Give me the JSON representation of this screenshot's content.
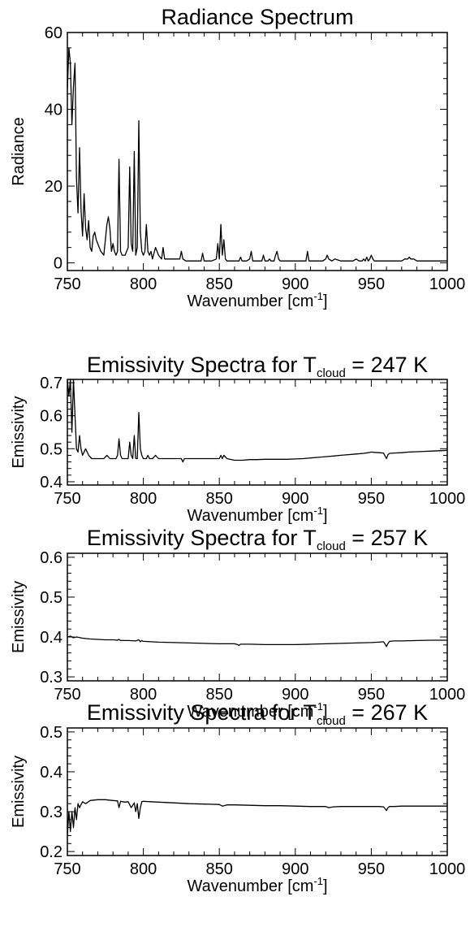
{
  "chart_data": [
    {
      "type": "line",
      "title": "Radiance Spectrum",
      "xlabel": "Wavenumber [cm",
      "xlabel_sup": "-1",
      "xlabel_tail": "]",
      "ylabel": "Radiance",
      "xlim": [
        750,
        1000
      ],
      "ylim": [
        -2,
        60
      ],
      "xticks": [
        750,
        800,
        850,
        900,
        950,
        1000
      ],
      "yticks": [
        0,
        20,
        40,
        60
      ],
      "series": [
        {
          "x": [
            750,
            751,
            752,
            753,
            754,
            755,
            756,
            757,
            758,
            759,
            760,
            761,
            762,
            763,
            764,
            765,
            766,
            767,
            768,
            769,
            770,
            772,
            774,
            776,
            777,
            778,
            779,
            780,
            781,
            782,
            783,
            784,
            785,
            786,
            787,
            788,
            789,
            790,
            791,
            792,
            793,
            794,
            795,
            796,
            797,
            798,
            799,
            800,
            801,
            802,
            803,
            804,
            805,
            806,
            808,
            810,
            812,
            813,
            814,
            816,
            818,
            820,
            822,
            824,
            825,
            826,
            828,
            830,
            835,
            838,
            839,
            840,
            845,
            848,
            849,
            850,
            851,
            852,
            853,
            854,
            855,
            856,
            860,
            863,
            864,
            865,
            868,
            870,
            871,
            872,
            875,
            878,
            879,
            880,
            882,
            883,
            884,
            886,
            887,
            888,
            889,
            890,
            895,
            900,
            905,
            907,
            908,
            909,
            912,
            915,
            918,
            920,
            921,
            922,
            924,
            926,
            930,
            935,
            938,
            940,
            942,
            944,
            945,
            946,
            947,
            948,
            949,
            950,
            951,
            952,
            953,
            955,
            958,
            960,
            962,
            965,
            968,
            970,
            972,
            974,
            975,
            976,
            978,
            980,
            982,
            984,
            986,
            988,
            990,
            992,
            994,
            996,
            998,
            1000
          ],
          "y": [
            45,
            56,
            52,
            36,
            46,
            52,
            22,
            13,
            30,
            14,
            7,
            18,
            9,
            6,
            11,
            4,
            3,
            7,
            8,
            6,
            5,
            3,
            2,
            10,
            12,
            9,
            3,
            5,
            3,
            2,
            3,
            27,
            3,
            2,
            2,
            2,
            3,
            4,
            25,
            5,
            3,
            29,
            2,
            4,
            37,
            8,
            3,
            2,
            3,
            10,
            3,
            2,
            3,
            1,
            4,
            2,
            1,
            4,
            1,
            1,
            1,
            1,
            1,
            1,
            3,
            1,
            0.5,
            0.5,
            0.5,
            0.5,
            2.5,
            0.5,
            0.5,
            1,
            5,
            1,
            10,
            2,
            6,
            1,
            0.5,
            0.5,
            0.5,
            0.5,
            1.5,
            0.5,
            0.5,
            1,
            3,
            0.5,
            0.5,
            0.5,
            2,
            0.5,
            0.5,
            1,
            0.5,
            0.5,
            2,
            3,
            1,
            0.5,
            0.5,
            0.5,
            0.5,
            0.5,
            3,
            0.5,
            0.5,
            0.5,
            0.5,
            1,
            2,
            1,
            0.5,
            1,
            0.5,
            0.5,
            0.5,
            1,
            0.5,
            0.5,
            1,
            0.5,
            1.5,
            0.5,
            1,
            2,
            1,
            0.5,
            0.5,
            0.5,
            0.5,
            0.5,
            0.5,
            0.5,
            0.5,
            0.5,
            1,
            1,
            1.5,
            1,
            1,
            0.5,
            0.5,
            0.5,
            0.5,
            0.5,
            0.5,
            0.5,
            0.5,
            0.5,
            0.5,
            0.5
          ]
        }
      ]
    },
    {
      "type": "line",
      "title": "Emissivity Spectra for T",
      "title_sub": "cloud",
      "title_tail": " = 247 K",
      "xlabel": "Wavenumber [cm",
      "xlabel_sup": "-1",
      "xlabel_tail": "]",
      "ylabel": "Emissivity",
      "xlim": [
        750,
        1000
      ],
      "ylim": [
        0.39,
        0.71
      ],
      "xticks": [
        750,
        800,
        850,
        900,
        950,
        1000
      ],
      "yticks": [
        0.4,
        0.5,
        0.6,
        0.7
      ],
      "series": [
        {
          "x": [
            750,
            751,
            752,
            753,
            754,
            755,
            756,
            757,
            758,
            759,
            760,
            762,
            764,
            766,
            768,
            770,
            772,
            774,
            776,
            778,
            780,
            782,
            783,
            784,
            785,
            786,
            788,
            790,
            791,
            792,
            793,
            794,
            795,
            796,
            797,
            798,
            799,
            800,
            802,
            803,
            804,
            806,
            808,
            810,
            812,
            815,
            820,
            825,
            826,
            827,
            830,
            835,
            840,
            845,
            848,
            850,
            851,
            852,
            853,
            855,
            860,
            865,
            870,
            875,
            880,
            885,
            890,
            895,
            900,
            905,
            910,
            915,
            920,
            925,
            930,
            935,
            940,
            945,
            948,
            950,
            952,
            955,
            958,
            960,
            961,
            962,
            965,
            970,
            975,
            980,
            985,
            990,
            995,
            1000
          ],
          "y": [
            0.71,
            0.66,
            0.71,
            0.55,
            0.71,
            0.6,
            0.5,
            0.49,
            0.54,
            0.5,
            0.48,
            0.5,
            0.48,
            0.47,
            0.47,
            0.47,
            0.47,
            0.47,
            0.48,
            0.47,
            0.47,
            0.47,
            0.48,
            0.53,
            0.48,
            0.47,
            0.47,
            0.47,
            0.52,
            0.48,
            0.47,
            0.54,
            0.47,
            0.47,
            0.61,
            0.5,
            0.48,
            0.47,
            0.47,
            0.48,
            0.47,
            0.47,
            0.48,
            0.47,
            0.47,
            0.47,
            0.47,
            0.47,
            0.46,
            0.47,
            0.47,
            0.47,
            0.47,
            0.47,
            0.47,
            0.47,
            0.48,
            0.47,
            0.48,
            0.47,
            0.465,
            0.465,
            0.467,
            0.467,
            0.468,
            0.468,
            0.468,
            0.468,
            0.469,
            0.47,
            0.472,
            0.474,
            0.476,
            0.478,
            0.48,
            0.482,
            0.484,
            0.486,
            0.488,
            0.49,
            0.489,
            0.488,
            0.487,
            0.47,
            0.482,
            0.486,
            0.487,
            0.488,
            0.49,
            0.491,
            0.492,
            0.493,
            0.494,
            0.495
          ]
        }
      ]
    },
    {
      "type": "line",
      "title": "Emissivity Spectra for T",
      "title_sub": "cloud",
      "title_tail": " = 257 K",
      "xlabel": "Wavenumber [cm",
      "xlabel_sup": "-1",
      "xlabel_tail": "]",
      "ylabel": "Emissivity",
      "xlim": [
        750,
        1000
      ],
      "ylim": [
        0.29,
        0.61
      ],
      "xticks": [
        750,
        800,
        850,
        900,
        950,
        1000
      ],
      "yticks": [
        0.3,
        0.4,
        0.5,
        0.6
      ],
      "series": [
        {
          "x": [
            750,
            752,
            754,
            756,
            760,
            765,
            770,
            775,
            780,
            783,
            784,
            785,
            790,
            795,
            797,
            798,
            799,
            800,
            805,
            810,
            820,
            830,
            840,
            850,
            860,
            862,
            863,
            864,
            866,
            870,
            880,
            890,
            900,
            910,
            920,
            930,
            940,
            950,
            955,
            958,
            959,
            960,
            961,
            962,
            965,
            970,
            980,
            990,
            1000
          ],
          "y": [
            0.4,
            0.402,
            0.398,
            0.4,
            0.397,
            0.395,
            0.394,
            0.393,
            0.393,
            0.392,
            0.394,
            0.391,
            0.391,
            0.39,
            0.393,
            0.388,
            0.391,
            0.389,
            0.388,
            0.387,
            0.386,
            0.385,
            0.384,
            0.383,
            0.383,
            0.381,
            0.379,
            0.382,
            0.382,
            0.382,
            0.381,
            0.381,
            0.381,
            0.382,
            0.383,
            0.384,
            0.385,
            0.386,
            0.387,
            0.388,
            0.383,
            0.376,
            0.384,
            0.389,
            0.39,
            0.39,
            0.391,
            0.392,
            0.392
          ]
        }
      ]
    },
    {
      "type": "line",
      "title": "Emissivity Spectra for T",
      "title_sub": "cloud",
      "title_tail": " = 267 K",
      "xlabel": "Wavenumber [cm",
      "xlabel_sup": "-1",
      "xlabel_tail": "]",
      "ylabel": "Emissivity",
      "xlim": [
        750,
        1000
      ],
      "ylim": [
        0.19,
        0.51
      ],
      "xticks": [
        750,
        800,
        850,
        900,
        950,
        1000
      ],
      "yticks": [
        0.2,
        0.3,
        0.4,
        0.5
      ],
      "series": [
        {
          "x": [
            750,
            751,
            752,
            753,
            754,
            755,
            756,
            757,
            758,
            760,
            762,
            765,
            770,
            775,
            780,
            783,
            784,
            785,
            788,
            790,
            792,
            794,
            795,
            796,
            797,
            798,
            799,
            800,
            805,
            810,
            820,
            830,
            840,
            850,
            852,
            855,
            860,
            870,
            880,
            890,
            900,
            910,
            920,
            922,
            925,
            930,
            940,
            950,
            955,
            958,
            959,
            960,
            961,
            962,
            965,
            970,
            980,
            990,
            1000
          ],
          "y": [
            0.24,
            0.3,
            0.25,
            0.3,
            0.26,
            0.31,
            0.28,
            0.32,
            0.31,
            0.325,
            0.32,
            0.328,
            0.33,
            0.33,
            0.328,
            0.327,
            0.31,
            0.326,
            0.324,
            0.325,
            0.31,
            0.322,
            0.3,
            0.32,
            0.283,
            0.31,
            0.325,
            0.326,
            0.325,
            0.324,
            0.322,
            0.32,
            0.319,
            0.318,
            0.314,
            0.317,
            0.317,
            0.316,
            0.315,
            0.315,
            0.314,
            0.313,
            0.313,
            0.31,
            0.312,
            0.313,
            0.313,
            0.313,
            0.313,
            0.312,
            0.308,
            0.303,
            0.31,
            0.313,
            0.313,
            0.314,
            0.314,
            0.314,
            0.314
          ]
        }
      ]
    }
  ]
}
